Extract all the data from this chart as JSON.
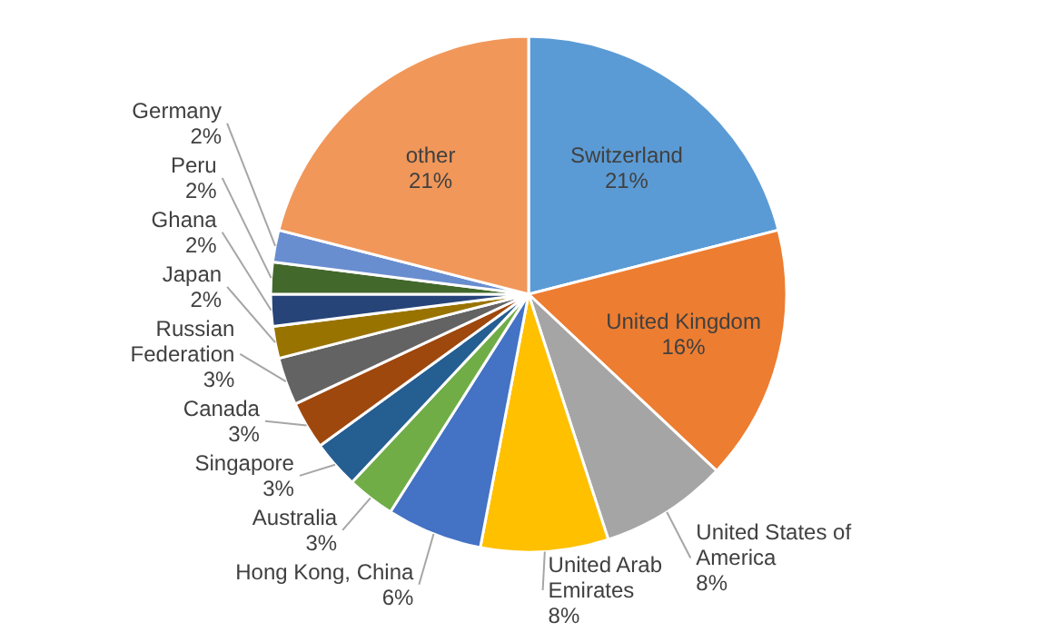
{
  "chart_data": {
    "type": "pie",
    "categories": [
      "Switzerland",
      "United Kingdom",
      "United States of America",
      "United Arab Emirates",
      "Hong Kong, China",
      "Australia",
      "Singapore",
      "Canada",
      "Russian Federation",
      "Japan",
      "Ghana",
      "Peru",
      "Germany",
      "other"
    ],
    "values": [
      21,
      16,
      8,
      8,
      6,
      3,
      3,
      3,
      3,
      2,
      2,
      2,
      2,
      21
    ],
    "value_labels": [
      "21%",
      "16%",
      "8%",
      "8%",
      "6%",
      "3%",
      "3%",
      "3%",
      "3%",
      "2%",
      "2%",
      "2%",
      "2%",
      "21%"
    ],
    "colors": [
      "#5b9bd5",
      "#ed7d31",
      "#a5a5a5",
      "#ffc000",
      "#4472c4",
      "#70ad47",
      "#255e91",
      "#9e480e",
      "#636363",
      "#997300",
      "#264478",
      "#43682b",
      "#698ed0",
      "#f1975a"
    ]
  }
}
